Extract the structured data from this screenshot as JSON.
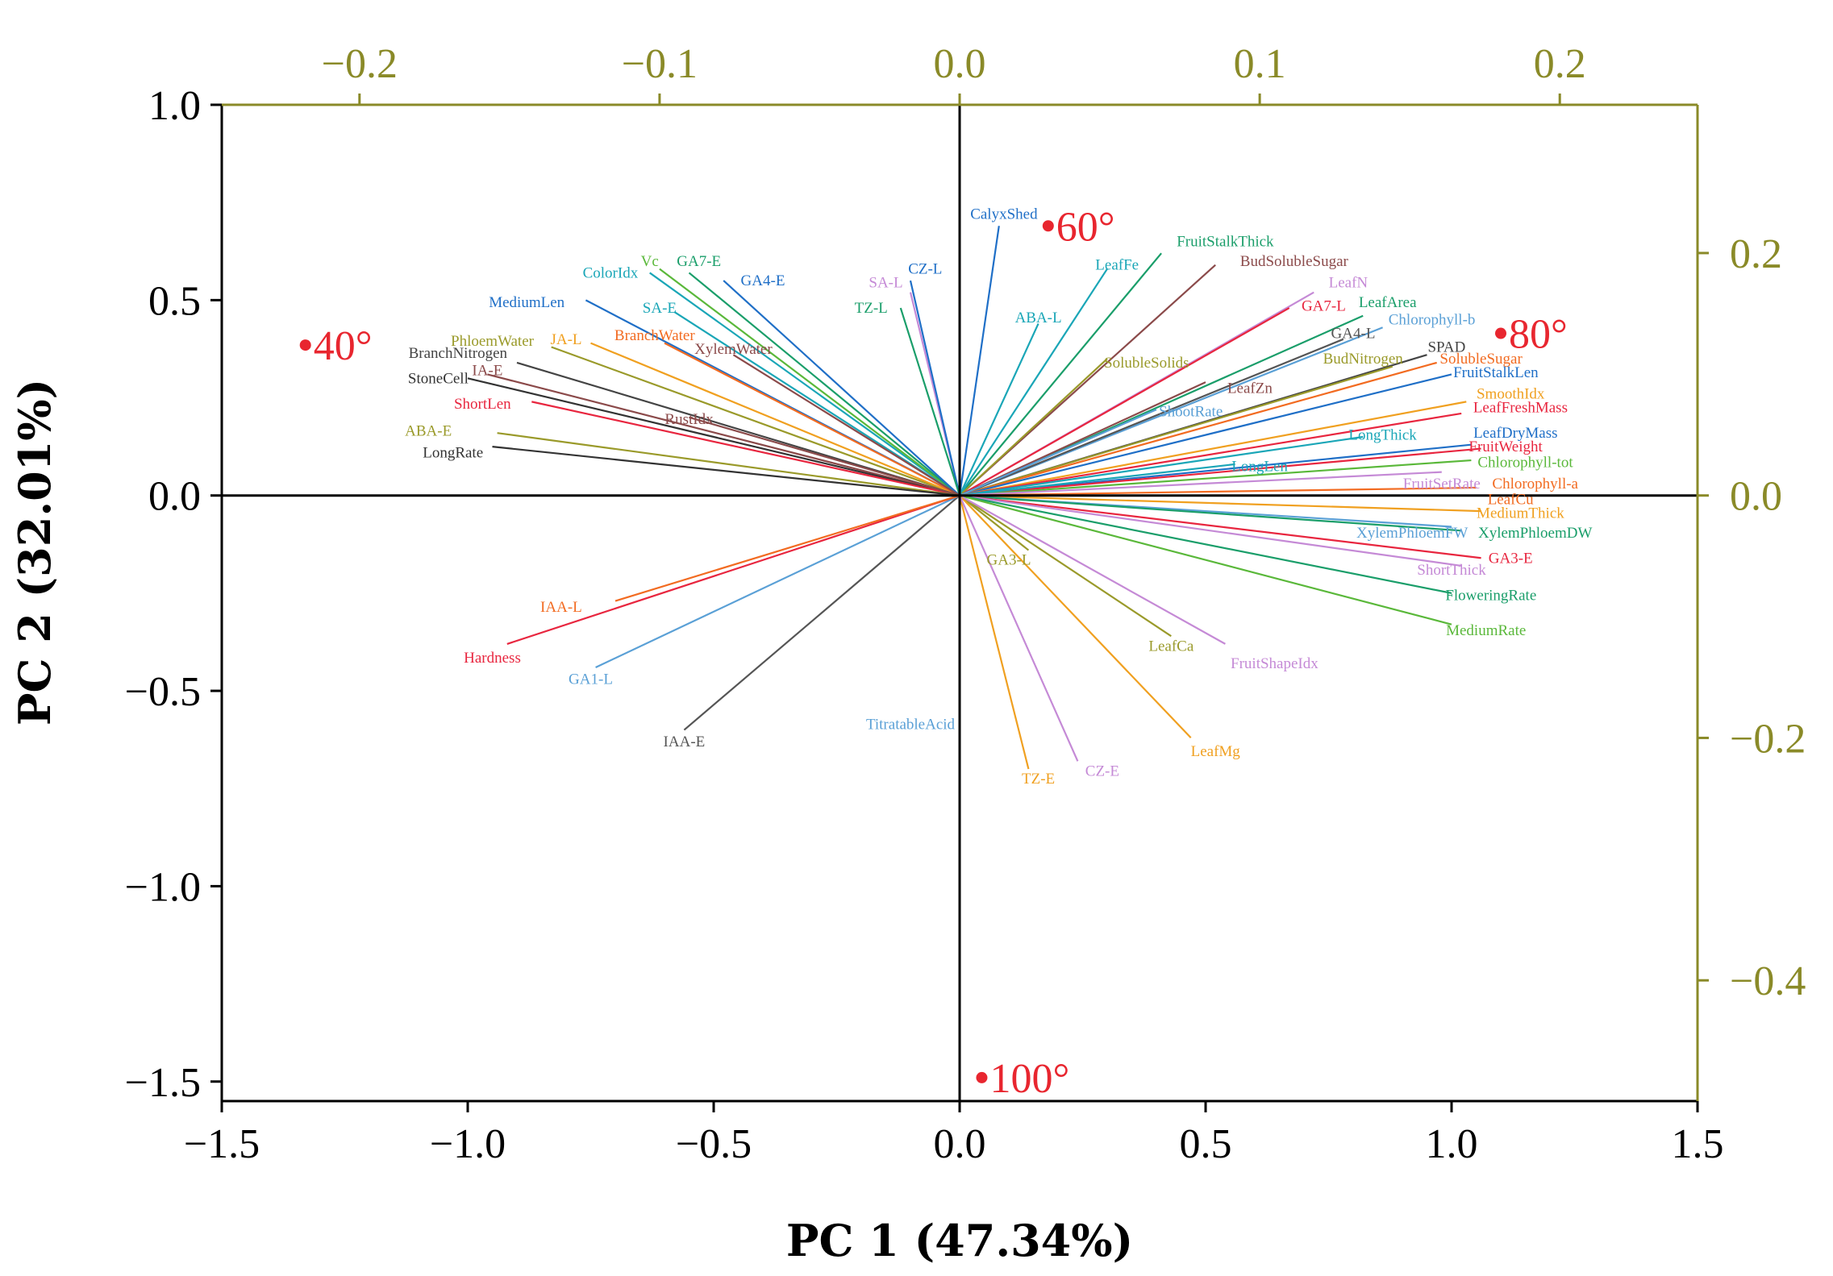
{
  "chart_data": {
    "type": "scatter",
    "subtype": "pca-biplot",
    "xlabel": "PC 1 (47.34%)",
    "ylabel": "PC 2 (32.01%)",
    "xlim": [
      -1.5,
      1.5
    ],
    "ylim": [
      -1.55,
      1.0
    ],
    "xticks": [
      -1.5,
      -1.0,
      -0.5,
      0.0,
      0.5,
      1.0,
      1.5
    ],
    "xtick_labels": [
      "−1.5",
      "−1.0",
      "−0.5",
      "0.0",
      "0.5",
      "1.0",
      "1.5"
    ],
    "yticks": [
      1.0,
      0.5,
      0.0,
      -0.5,
      -1.0,
      -1.5
    ],
    "ytick_labels": [
      "1.0",
      "0.5",
      "0.0",
      "−0.5",
      "−1.0",
      "−1.5"
    ],
    "top_axis": {
      "lim": [
        -0.2459,
        0.2459
      ],
      "ticks": [
        -0.2,
        -0.1,
        0.0,
        0.1,
        0.2
      ],
      "tick_labels": [
        "−0.2",
        "−0.1",
        "0.0",
        "0.1",
        "0.2"
      ],
      "color": "#8a8a28"
    },
    "right_axis": {
      "lim": [
        -0.4996,
        0.3223
      ],
      "ticks": [
        0.2,
        0.0,
        -0.2,
        -0.4
      ],
      "tick_labels": [
        "0.2",
        "0.0",
        "−0.2",
        "−0.4"
      ],
      "color": "#8a8a28"
    },
    "grid": false,
    "groups": [
      {
        "name": "40°",
        "x": -1.33,
        "y": 0.385,
        "color": "#e8262f"
      },
      {
        "name": "60°",
        "x": 0.18,
        "y": 0.69,
        "color": "#e8262f"
      },
      {
        "name": "80°",
        "x": 1.1,
        "y": 0.415,
        "color": "#e8262f"
      },
      {
        "name": "100°",
        "x": 0.045,
        "y": -1.49,
        "color": "#e8262f"
      }
    ],
    "loadings": [
      {
        "name": "CalyxShed",
        "x": 0.08,
        "y": 0.69,
        "color": "#1f6fc7",
        "lx": 0.09,
        "ly": 0.72
      },
      {
        "name": "FruitStalkThick",
        "x": 0.41,
        "y": 0.62,
        "color": "#1a9e6a",
        "lx": 0.54,
        "ly": 0.65
      },
      {
        "name": "BudSolubleSugar",
        "x": 0.52,
        "y": 0.59,
        "color": "#8b4a4a",
        "lx": 0.68,
        "ly": 0.6
      },
      {
        "name": "LeafFe",
        "x": 0.3,
        "y": 0.58,
        "color": "#1aa6b7",
        "lx": 0.32,
        "ly": 0.59
      },
      {
        "name": "LeafN",
        "x": 0.72,
        "y": 0.52,
        "color": "#c58ad6",
        "lx": 0.79,
        "ly": 0.545
      },
      {
        "name": "GA7-L",
        "x": 0.67,
        "y": 0.48,
        "color": "#e8263f",
        "lx": 0.74,
        "ly": 0.485
      },
      {
        "name": "LeafArea",
        "x": 0.82,
        "y": 0.46,
        "color": "#1a9e6a",
        "lx": 0.87,
        "ly": 0.495
      },
      {
        "name": "Chlorophyll-b",
        "x": 0.86,
        "y": 0.43,
        "color": "#5aa0d6",
        "lx": 0.96,
        "ly": 0.45
      },
      {
        "name": "GA4-L",
        "x": 0.78,
        "y": 0.4,
        "color": "#555555",
        "lx": 0.8,
        "ly": 0.415
      },
      {
        "name": "SPAD",
        "x": 0.95,
        "y": 0.36,
        "color": "#444444",
        "lx": 0.99,
        "ly": 0.38
      },
      {
        "name": "BudNitrogen",
        "x": 0.88,
        "y": 0.33,
        "color": "#9a9a2a",
        "lx": 0.82,
        "ly": 0.35
      },
      {
        "name": "SolubleSugar",
        "x": 0.97,
        "y": 0.34,
        "color": "#f26b21",
        "lx": 1.06,
        "ly": 0.35
      },
      {
        "name": "FruitStalkLen",
        "x": 1.0,
        "y": 0.31,
        "color": "#1f6fc7",
        "lx": 1.09,
        "ly": 0.315
      },
      {
        "name": "SolubleSolids",
        "x": 0.3,
        "y": 0.35,
        "color": "#9a9a2a",
        "lx": 0.38,
        "ly": 0.34
      },
      {
        "name": "LeafZn",
        "x": 0.5,
        "y": 0.29,
        "color": "#8b4a4a",
        "lx": 0.59,
        "ly": 0.275
      },
      {
        "name": "ShootRate",
        "x": 0.4,
        "y": 0.22,
        "color": "#5aa0d6",
        "lx": 0.47,
        "ly": 0.215
      },
      {
        "name": "SmoothIdx",
        "x": 1.03,
        "y": 0.24,
        "color": "#f0a020",
        "lx": 1.12,
        "ly": 0.26
      },
      {
        "name": "LeafFreshMass",
        "x": 1.02,
        "y": 0.21,
        "color": "#e8263f",
        "lx": 1.14,
        "ly": 0.225
      },
      {
        "name": "LongThick",
        "x": 0.82,
        "y": 0.15,
        "color": "#1aa6b7",
        "lx": 0.86,
        "ly": 0.155
      },
      {
        "name": "LeafDryMass",
        "x": 1.04,
        "y": 0.13,
        "color": "#1f6fc7",
        "lx": 1.13,
        "ly": 0.16
      },
      {
        "name": "FruitWeight",
        "x": 1.06,
        "y": 0.12,
        "color": "#e8263f",
        "lx": 1.11,
        "ly": 0.125
      },
      {
        "name": "Chlorophyll-tot",
        "x": 1.04,
        "y": 0.09,
        "color": "#5ab83a",
        "lx": 1.15,
        "ly": 0.085
      },
      {
        "name": "LongLen",
        "x": 0.56,
        "y": 0.08,
        "color": "#1aa6b7",
        "lx": 0.61,
        "ly": 0.075
      },
      {
        "name": "FruitSetRate",
        "x": 0.98,
        "y": 0.06,
        "color": "#c58ad6",
        "lx": 0.98,
        "ly": 0.03
      },
      {
        "name": "Chlorophyll-a",
        "x": 1.05,
        "y": 0.02,
        "color": "#f26b21",
        "lx": 1.17,
        "ly": 0.03
      },
      {
        "name": "LeafCu",
        "x": 1.07,
        "y": 0.0,
        "color": "#f26b21",
        "lx": 1.12,
        "ly": -0.01
      },
      {
        "name": "MediumThick",
        "x": 1.06,
        "y": -0.04,
        "color": "#f0a020",
        "lx": 1.14,
        "ly": -0.045
      },
      {
        "name": "XylemPhloemFW",
        "x": 1.0,
        "y": -0.08,
        "color": "#5aa0d6",
        "lx": 0.92,
        "ly": -0.095
      },
      {
        "name": "XylemPhloemDW",
        "x": 1.02,
        "y": -0.09,
        "color": "#1a9e6a",
        "lx": 1.17,
        "ly": -0.095
      },
      {
        "name": "GA3-E",
        "x": 1.06,
        "y": -0.16,
        "color": "#e8263f",
        "lx": 1.12,
        "ly": -0.16
      },
      {
        "name": "ShortThick",
        "x": 1.02,
        "y": -0.18,
        "color": "#c58ad6",
        "lx": 1.0,
        "ly": -0.19
      },
      {
        "name": "FloweringRate",
        "x": 1.0,
        "y": -0.25,
        "color": "#1a9e6a",
        "lx": 1.08,
        "ly": -0.255
      },
      {
        "name": "MediumRate",
        "x": 1.0,
        "y": -0.33,
        "color": "#5ab83a",
        "lx": 1.07,
        "ly": -0.345
      },
      {
        "name": "GA3-L",
        "x": 0.14,
        "y": -0.14,
        "color": "#9a9a2a",
        "lx": 0.1,
        "ly": -0.165
      },
      {
        "name": "LeafCa",
        "x": 0.43,
        "y": -0.36,
        "color": "#9a9a2a",
        "lx": 0.43,
        "ly": -0.385
      },
      {
        "name": "FruitShapeIdx",
        "x": 0.54,
        "y": -0.38,
        "color": "#c58ad6",
        "lx": 0.64,
        "ly": -0.43
      },
      {
        "name": "LeafMg",
        "x": 0.47,
        "y": -0.62,
        "color": "#f0a020",
        "lx": 0.52,
        "ly": -0.655
      },
      {
        "name": "TZ-E",
        "x": 0.14,
        "y": -0.7,
        "color": "#f0a020",
        "lx": 0.16,
        "ly": -0.725
      },
      {
        "name": "CZ-E",
        "x": 0.24,
        "y": -0.68,
        "color": "#c58ad6",
        "lx": 0.29,
        "ly": -0.705
      },
      {
        "name": "TitratableAcid",
        "x": 0.0,
        "y": -0.54,
        "color": "#5aa0d6",
        "lx": -0.1,
        "ly": -0.585
      },
      {
        "name": "IAA-E",
        "x": -0.56,
        "y": -0.6,
        "color": "#555555",
        "lx": -0.56,
        "ly": -0.63
      },
      {
        "name": "GA1-L",
        "x": -0.74,
        "y": -0.44,
        "color": "#5aa0d6",
        "lx": -0.75,
        "ly": -0.47
      },
      {
        "name": "Hardness",
        "x": -0.92,
        "y": -0.38,
        "color": "#e8263f",
        "lx": -0.95,
        "ly": -0.415
      },
      {
        "name": "IAA-L",
        "x": -0.7,
        "y": -0.27,
        "color": "#f26b21",
        "lx": -0.81,
        "ly": -0.285
      },
      {
        "name": "ColorIdx",
        "x": -0.63,
        "y": 0.57,
        "color": "#1aa6b7",
        "lx": -0.71,
        "ly": 0.57
      },
      {
        "name": "Vc",
        "x": -0.61,
        "y": 0.58,
        "color": "#5ab83a",
        "lx": -0.63,
        "ly": 0.6
      },
      {
        "name": "GA7-E",
        "x": -0.55,
        "y": 0.57,
        "color": "#1a9e6a",
        "lx": -0.53,
        "ly": 0.6
      },
      {
        "name": "GA4-E",
        "x": -0.48,
        "y": 0.55,
        "color": "#1f6fc7",
        "lx": -0.4,
        "ly": 0.55
      },
      {
        "name": "MediumLen",
        "x": -0.76,
        "y": 0.5,
        "color": "#1f6fc7",
        "lx": -0.88,
        "ly": 0.495
      },
      {
        "name": "SA-E",
        "x": -0.58,
        "y": 0.47,
        "color": "#1aa6b7",
        "lx": -0.61,
        "ly": 0.48
      },
      {
        "name": "SA-L",
        "x": -0.1,
        "y": 0.52,
        "color": "#c58ad6",
        "lx": -0.15,
        "ly": 0.545
      },
      {
        "name": "CZ-L",
        "x": -0.1,
        "y": 0.55,
        "color": "#1f6fc7",
        "lx": -0.07,
        "ly": 0.58
      },
      {
        "name": "TZ-L",
        "x": -0.12,
        "y": 0.48,
        "color": "#1a9e6a",
        "lx": -0.18,
        "ly": 0.48
      },
      {
        "name": "ABA-L",
        "x": 0.16,
        "y": 0.44,
        "color": "#1aa6b7",
        "lx": 0.16,
        "ly": 0.455
      },
      {
        "name": "PhloemWater",
        "x": -0.83,
        "y": 0.38,
        "color": "#9a9a2a",
        "lx": -0.95,
        "ly": 0.395
      },
      {
        "name": "JA-L",
        "x": -0.75,
        "y": 0.39,
        "color": "#f0a020",
        "lx": -0.8,
        "ly": 0.4
      },
      {
        "name": "BranchWater",
        "x": -0.6,
        "y": 0.39,
        "color": "#f26b21",
        "lx": -0.62,
        "ly": 0.41
      },
      {
        "name": "XylemWater",
        "x": -0.46,
        "y": 0.36,
        "color": "#8b4a4a",
        "lx": -0.46,
        "ly": 0.375
      },
      {
        "name": "BranchNitrogen",
        "x": -0.9,
        "y": 0.34,
        "color": "#444444",
        "lx": -1.02,
        "ly": 0.365
      },
      {
        "name": "IA-E",
        "x": -0.96,
        "y": 0.31,
        "color": "#8b4a4a",
        "lx": -0.96,
        "ly": 0.32
      },
      {
        "name": "StoneCell",
        "x": -1.0,
        "y": 0.3,
        "color": "#333333",
        "lx": -1.06,
        "ly": 0.3
      },
      {
        "name": "ShortLen",
        "x": -0.87,
        "y": 0.24,
        "color": "#e8263f",
        "lx": -0.97,
        "ly": 0.235
      },
      {
        "name": "RustIdx",
        "x": -0.55,
        "y": 0.2,
        "color": "#8b4a4a",
        "lx": -0.55,
        "ly": 0.195
      },
      {
        "name": "ABA-E",
        "x": -0.94,
        "y": 0.16,
        "color": "#9a9a2a",
        "lx": -1.08,
        "ly": 0.165
      },
      {
        "name": "LongRate",
        "x": -0.95,
        "y": 0.125,
        "color": "#333333",
        "lx": -1.03,
        "ly": 0.11
      }
    ]
  }
}
